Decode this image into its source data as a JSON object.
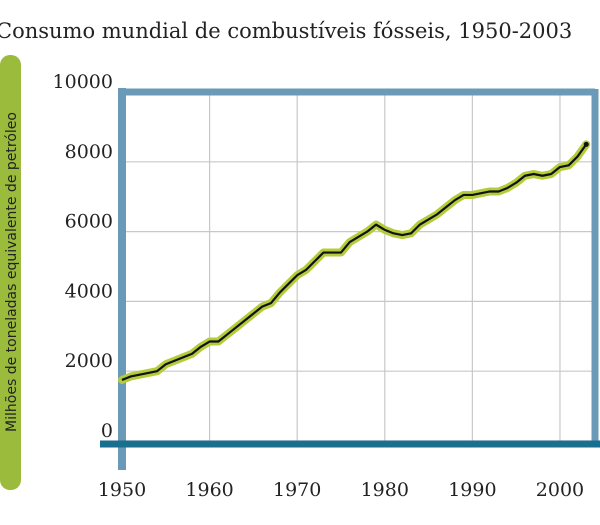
{
  "chart_data": {
    "type": "line",
    "title": "Consumo mundial de combustíveis fósseis, 1950-2003",
    "ylabel": "Milhões de toneladas equivalente de petróleo",
    "x": [
      1950,
      1951,
      1952,
      1953,
      1954,
      1955,
      1956,
      1957,
      1958,
      1959,
      1960,
      1961,
      1962,
      1963,
      1964,
      1965,
      1966,
      1967,
      1968,
      1969,
      1970,
      1971,
      1972,
      1973,
      1974,
      1975,
      1976,
      1977,
      1978,
      1979,
      1980,
      1981,
      1982,
      1983,
      1984,
      1985,
      1986,
      1987,
      1988,
      1989,
      1990,
      1991,
      1992,
      1993,
      1994,
      1995,
      1996,
      1997,
      1998,
      1999,
      2000,
      2001,
      2002,
      2003
    ],
    "values": [
      1750,
      1850,
      1900,
      1950,
      2000,
      2200,
      2300,
      2400,
      2500,
      2700,
      2850,
      2850,
      3050,
      3250,
      3450,
      3650,
      3850,
      3950,
      4250,
      4500,
      4750,
      4900,
      5150,
      5400,
      5400,
      5400,
      5700,
      5850,
      6000,
      6200,
      6050,
      5950,
      5900,
      5950,
      6200,
      6350,
      6500,
      6700,
      6900,
      7050,
      7050,
      7100,
      7150,
      7150,
      7250,
      7400,
      7600,
      7650,
      7600,
      7650,
      7850,
      7900,
      8150,
      8500
    ],
    "color": "#111111",
    "halo_color": "#b5cc3a",
    "xlim": [
      1950,
      2004
    ],
    "ylim": [
      0,
      10000
    ],
    "xticks": [
      1950,
      1960,
      1970,
      1980,
      1990,
      2000
    ],
    "yticks": [
      0,
      2000,
      4000,
      6000,
      8000,
      10000
    ],
    "grid": true
  }
}
